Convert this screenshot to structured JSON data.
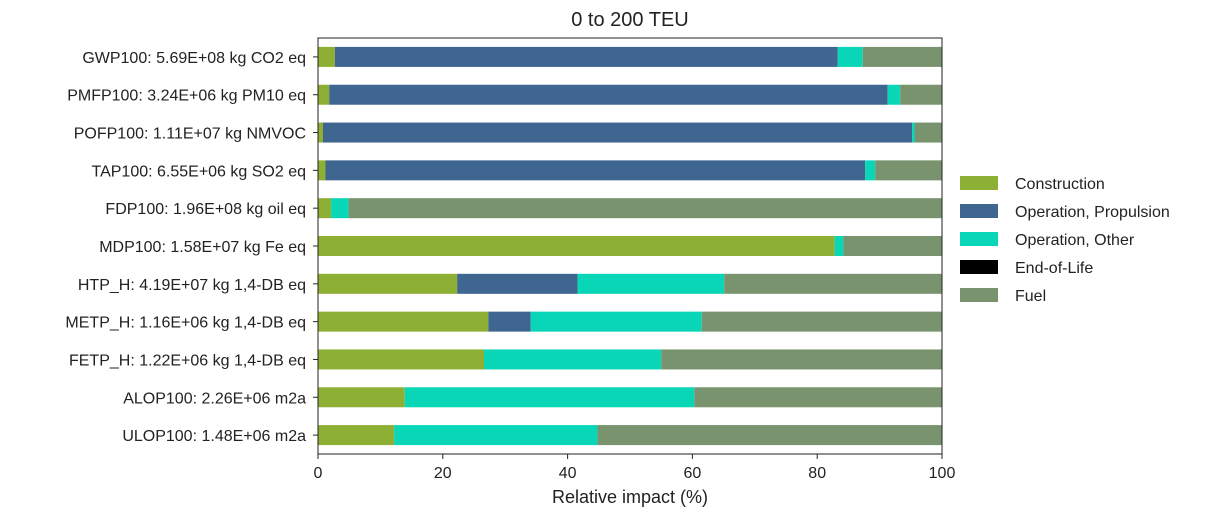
{
  "chart_data": {
    "type": "bar",
    "orientation": "horizontal",
    "stacked": true,
    "title": "0 to 200 TEU",
    "xlabel": "Relative impact (%)",
    "ylabel": "",
    "xlim": [
      0,
      100
    ],
    "xticks": [
      "0",
      "20",
      "40",
      "60",
      "80",
      "100"
    ],
    "grid": false,
    "legend_position": "right",
    "categories": [
      "GWP100: 5.69E+08 kg CO2 eq",
      "PMFP100: 3.24E+06 kg PM10 eq",
      "POFP100: 1.11E+07 kg NMVOC",
      "TAP100: 6.55E+06 kg SO2 eq",
      "FDP100: 1.96E+08 kg oil eq",
      "MDP100: 1.58E+07 kg Fe eq",
      "HTP_H: 4.19E+07 kg 1,4-DB eq",
      "METP_H: 1.16E+06 kg 1,4-DB eq",
      "FETP_H: 1.22E+06 kg 1,4-DB eq",
      "ALOP100: 2.26E+06 m2a",
      "ULOP100: 1.48E+06 m2a"
    ],
    "series": [
      {
        "name": "Construction",
        "color": "#8DAF34",
        "values": [
          2.7,
          1.8,
          0.8,
          1.2,
          2.1,
          82.8,
          22.3,
          27.3,
          26.6,
          13.9,
          12.2
        ]
      },
      {
        "name": "Operation, Propulsion",
        "color": "#3F6690",
        "values": [
          80.6,
          89.5,
          94.4,
          86.5,
          0.0,
          0.0,
          19.3,
          6.8,
          0.0,
          0.0,
          0.0
        ]
      },
      {
        "name": "Operation, Other",
        "color": "#08D6B6",
        "values": [
          4.0,
          2.0,
          0.4,
          1.6,
          2.8,
          1.4,
          23.5,
          27.4,
          28.4,
          46.4,
          32.6
        ]
      },
      {
        "name": "End-of-Life",
        "color": "#000000",
        "values": [
          0.0,
          0.0,
          0.0,
          0.0,
          0.0,
          0.0,
          0.0,
          0.0,
          0.0,
          0.0,
          0.0
        ]
      },
      {
        "name": "Fuel",
        "color": "#78936E",
        "values": [
          12.7,
          6.7,
          4.4,
          10.7,
          95.1,
          15.8,
          34.9,
          38.5,
          45.0,
          39.7,
          55.2
        ]
      }
    ]
  }
}
